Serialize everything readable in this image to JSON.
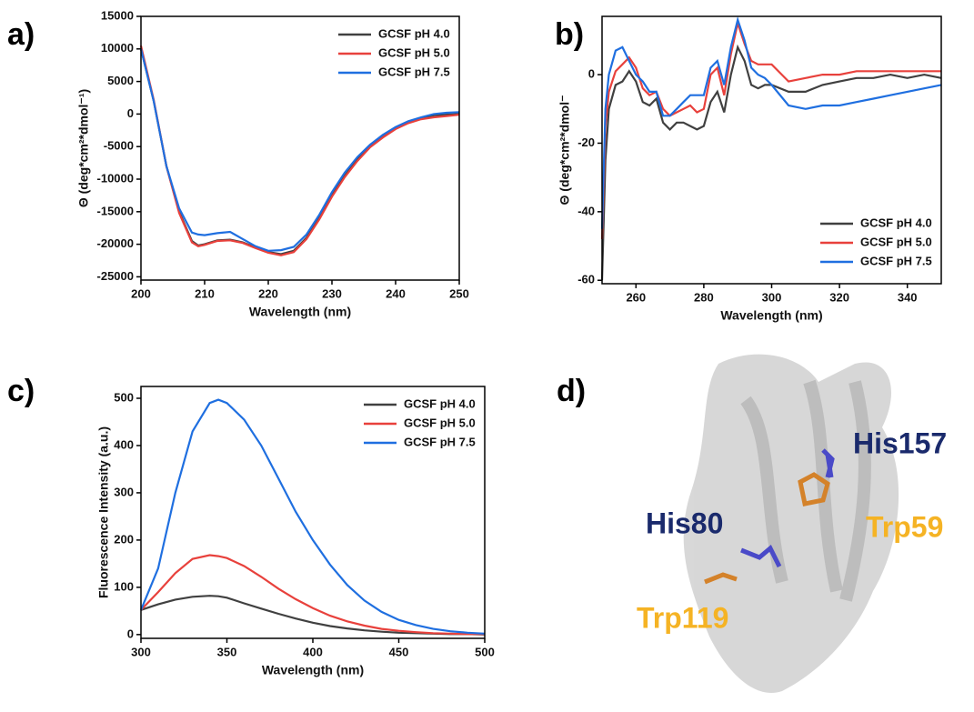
{
  "chart_data": [
    {
      "type": "line",
      "panel_label": "a)",
      "xlabel": "Wavelength (nm)",
      "ylabel": "Θ (deg*cm²*dmol⁻¹)",
      "x": [
        200,
        202,
        204,
        206,
        208,
        209,
        210,
        212,
        214,
        216,
        218,
        220,
        222,
        224,
        226,
        228,
        230,
        232,
        234,
        236,
        238,
        240,
        242,
        244,
        246,
        248,
        250
      ],
      "series": [
        {
          "name": "GCSF pH 4.0",
          "color": "#404040",
          "values": [
            10000,
            2000,
            -8000,
            -15000,
            -19500,
            -20200,
            -20000,
            -19400,
            -19300,
            -19700,
            -20500,
            -21200,
            -21500,
            -21000,
            -19000,
            -16000,
            -12500,
            -9500,
            -7000,
            -5000,
            -3500,
            -2200,
            -1200,
            -600,
            -200,
            -100,
            0
          ]
        },
        {
          "name": "GCSF pH 5.0",
          "color": "#e8413c",
          "values": [
            10500,
            2200,
            -8000,
            -15200,
            -19700,
            -20300,
            -20100,
            -19500,
            -19400,
            -19800,
            -20600,
            -21300,
            -21700,
            -21200,
            -19200,
            -16200,
            -12700,
            -9700,
            -7200,
            -5100,
            -3600,
            -2300,
            -1400,
            -800,
            -500,
            -300,
            -100
          ]
        },
        {
          "name": "GCSF pH 7.5",
          "color": "#1f6fe0",
          "values": [
            10000,
            2000,
            -8000,
            -14500,
            -18200,
            -18500,
            -18600,
            -18300,
            -18100,
            -19200,
            -20300,
            -21000,
            -20900,
            -20400,
            -18500,
            -15500,
            -12000,
            -9000,
            -6600,
            -4700,
            -3200,
            -2000,
            -1100,
            -500,
            0,
            200,
            300
          ]
        }
      ],
      "xlim": [
        200,
        250
      ],
      "ylim": [
        -25500,
        15000
      ],
      "xticks": [
        200,
        210,
        220,
        230,
        240,
        250
      ],
      "yticks": [
        -25000,
        -20000,
        -15000,
        -10000,
        -5000,
        0,
        5000,
        10000,
        15000
      ],
      "legend": "upper right"
    },
    {
      "type": "line",
      "panel_label": "b)",
      "xlabel": "Wavelength (nm)",
      "ylabel": "Θ (deg*cm²*dmol⁻",
      "x": [
        250,
        251,
        252,
        254,
        256,
        258,
        260,
        262,
        264,
        266,
        268,
        270,
        272,
        274,
        276,
        278,
        280,
        282,
        284,
        286,
        288,
        290,
        292,
        294,
        296,
        298,
        300,
        305,
        310,
        315,
        320,
        325,
        330,
        335,
        340,
        345,
        350
      ],
      "series": [
        {
          "name": "GCSF pH 4.0",
          "color": "#404040",
          "values": [
            -60,
            -25,
            -10,
            -3,
            -2,
            1,
            -2,
            -8,
            -9,
            -7,
            -14,
            -16,
            -14,
            -14,
            -15,
            -16,
            -15,
            -8,
            -5,
            -11,
            0,
            8,
            4,
            -3,
            -4,
            -3,
            -3,
            -5,
            -5,
            -3,
            -2,
            -1,
            -1,
            0,
            -1,
            0,
            -1
          ]
        },
        {
          "name": "GCSF pH 5.0",
          "color": "#e8413c",
          "values": [
            -48,
            -15,
            -5,
            1,
            3,
            5,
            2,
            -4,
            -6,
            -5,
            -10,
            -12,
            -11,
            -10,
            -9,
            -11,
            -10,
            0,
            2,
            -6,
            6,
            15,
            9,
            4,
            3,
            3,
            3,
            -2,
            -1,
            0,
            0,
            1,
            1,
            1,
            1,
            1,
            1
          ]
        },
        {
          "name": "GCSF pH 7.5",
          "color": "#1f6fe0",
          "values": [
            -45,
            -10,
            0,
            7,
            8,
            4,
            0,
            -2,
            -5,
            -5,
            -12,
            -12,
            -10,
            -8,
            -6,
            -6,
            -6,
            2,
            4,
            -3,
            8,
            16,
            10,
            2,
            0,
            -1,
            -3,
            -9,
            -10,
            -9,
            -9,
            -8,
            -7,
            -6,
            -5,
            -4,
            -3
          ]
        }
      ],
      "xlim": [
        250,
        350
      ],
      "ylim": [
        -61,
        17
      ],
      "xticks": [
        260,
        280,
        300,
        320,
        340
      ],
      "yticks": [
        -60,
        -40,
        -20,
        0
      ],
      "legend": "lower right"
    },
    {
      "type": "line",
      "panel_label": "c)",
      "xlabel": "Wavelength (nm)",
      "ylabel": "Fluorescence Intensity (a.u.)",
      "x": [
        300,
        310,
        320,
        330,
        340,
        345,
        350,
        360,
        370,
        380,
        390,
        400,
        410,
        420,
        430,
        440,
        450,
        460,
        470,
        480,
        490,
        500
      ],
      "series": [
        {
          "name": "GCSF pH 4.0",
          "color": "#404040",
          "values": [
            52,
            64,
            74,
            80,
            82,
            81,
            78,
            66,
            55,
            44,
            34,
            25,
            18,
            13,
            9,
            6,
            4,
            3,
            2,
            1,
            1,
            0
          ]
        },
        {
          "name": "GCSF pH 5.0",
          "color": "#e8413c",
          "values": [
            52,
            90,
            130,
            160,
            168,
            166,
            162,
            145,
            122,
            97,
            75,
            56,
            40,
            28,
            19,
            12,
            8,
            5,
            3,
            2,
            1,
            1
          ]
        },
        {
          "name": "GCSF pH 7.5",
          "color": "#1f6fe0",
          "values": [
            52,
            140,
            300,
            430,
            490,
            497,
            490,
            455,
            400,
            330,
            260,
            200,
            148,
            105,
            72,
            48,
            31,
            20,
            12,
            7,
            4,
            2
          ]
        }
      ],
      "xlim": [
        300,
        500
      ],
      "ylim": [
        -8,
        525
      ],
      "xticks": [
        300,
        350,
        400,
        450,
        500
      ],
      "yticks": [
        0,
        100,
        200,
        300,
        400,
        500
      ],
      "legend": "upper right"
    }
  ],
  "structure": {
    "panel_label": "d)",
    "labels": [
      "His157",
      "His80",
      "Trp59",
      "Trp119"
    ]
  }
}
